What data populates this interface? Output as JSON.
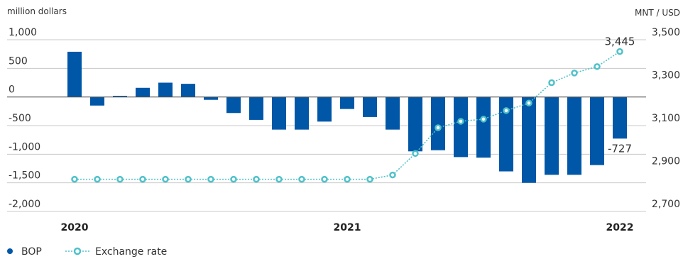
{
  "chart_data": {
    "type": "bar+line",
    "left_axis": {
      "unit_label": "million dollars",
      "ylim": [
        -2000,
        1000
      ],
      "ticks": [
        1000,
        500,
        0,
        -500,
        -1000,
        -1500,
        -2000
      ],
      "tick_labels": [
        "1,000",
        "500",
        "0",
        "-500",
        "-1,000",
        "-1,500",
        "-2,000"
      ]
    },
    "right_axis": {
      "unit_label": "MNT / USD",
      "ylim": [
        2700,
        3500
      ],
      "ticks": [
        3500,
        3300,
        3100,
        2900,
        2700
      ],
      "tick_labels": [
        "3,500",
        "3,300",
        "3,100",
        "2,900",
        "2,700"
      ]
    },
    "x_labels": [
      {
        "label": "2020",
        "index": 0
      },
      {
        "label": "2021",
        "index": 12
      },
      {
        "label": "2022",
        "index": 24
      }
    ],
    "series": [
      {
        "name": "BOP",
        "type": "bar",
        "axis": "left",
        "color": "#0057a8",
        "values": [
          790,
          -150,
          20,
          160,
          250,
          230,
          -50,
          -280,
          -400,
          -570,
          -570,
          -430,
          -210,
          -350,
          -570,
          -950,
          -930,
          -1050,
          -1060,
          -1300,
          -1500,
          -1360,
          -1360,
          -1190,
          -727
        ]
      },
      {
        "name": "Exchange rate",
        "type": "line",
        "axis": "right",
        "color": "#4fc1c9",
        "values": [
          2850,
          2850,
          2850,
          2850,
          2850,
          2850,
          2850,
          2850,
          2850,
          2850,
          2850,
          2850,
          2850,
          2850,
          2870,
          2970,
          3090,
          3120,
          3130,
          3170,
          3205,
          3300,
          3345,
          3375,
          3445
        ]
      }
    ],
    "data_labels": [
      {
        "series": "BOP",
        "index": 24,
        "text": "-727"
      },
      {
        "series": "Exchange rate",
        "index": 24,
        "text": "3,445"
      }
    ],
    "grid": true,
    "legend": {
      "placement": "bottom-left"
    }
  }
}
